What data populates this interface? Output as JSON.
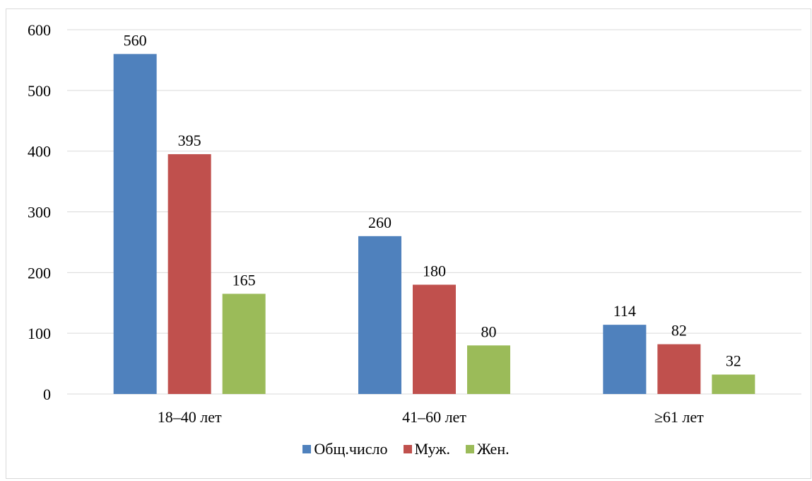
{
  "chart_data": {
    "type": "bar",
    "title": "",
    "xlabel": "",
    "ylabel": "",
    "categories": [
      "18–40 лет",
      "41–60 лет",
      "≥61 лет"
    ],
    "series": [
      {
        "name": "Общ.число",
        "values": [
          560,
          260,
          114
        ],
        "color": "#4F81BD"
      },
      {
        "name": "Муж.",
        "values": [
          395,
          180,
          82
        ],
        "color": "#C0504D"
      },
      {
        "name": "Жен.",
        "values": [
          165,
          80,
          32
        ],
        "color": "#9BBB59"
      }
    ],
    "ylim": [
      0,
      600
    ],
    "yticks": [
      0,
      100,
      200,
      300,
      400,
      500,
      600
    ],
    "grid": true,
    "gridColor": "#d9d9d9",
    "legend_position": "bottom"
  }
}
